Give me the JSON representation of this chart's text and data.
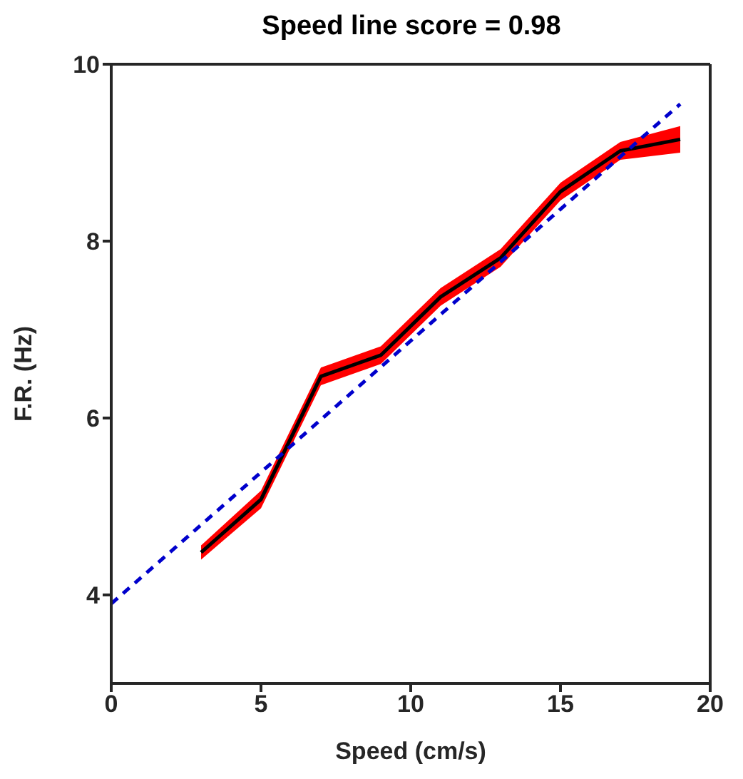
{
  "chart_data": {
    "type": "line",
    "title": "Speed line score = 0.98",
    "xlabel": "Speed (cm/s)",
    "ylabel": "F.R. (Hz)",
    "xlim": [
      0,
      20
    ],
    "xticks": [
      0,
      5,
      10,
      15,
      20
    ],
    "ylim": [
      3,
      10
    ],
    "yticks": [
      4,
      6,
      8,
      10
    ],
    "grid": false,
    "series": [
      {
        "color": "#000000",
        "x": [
          3,
          5,
          7,
          9,
          11,
          13,
          15,
          17,
          19
        ],
        "values": [
          4.48,
          5.08,
          6.47,
          6.71,
          7.37,
          7.81,
          8.56,
          9.02,
          9.15
        ],
        "lower": [
          4.4,
          4.98,
          6.37,
          6.61,
          7.27,
          7.71,
          8.46,
          8.92,
          9.0
        ],
        "upper": [
          4.56,
          5.18,
          6.57,
          6.81,
          7.47,
          7.91,
          8.66,
          9.12,
          9.3
        ],
        "line_style": "solid"
      },
      {
        "type": "line",
        "color": "#0000cc",
        "x": [
          0,
          19
        ],
        "values": [
          3.9,
          9.55
        ],
        "line_style": "dashed"
      }
    ]
  }
}
